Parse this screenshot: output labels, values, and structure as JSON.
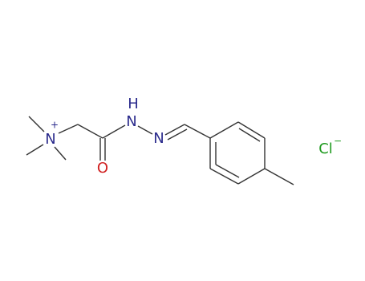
{
  "atoms": {
    "ammonium_n": "N",
    "ammonium_charge": "+",
    "carbonyl_o": "O",
    "hydrazide_h": "H",
    "hydrazide_n": "N",
    "imine_n": "N",
    "chloride": "Cl",
    "chloride_charge": "−"
  }
}
